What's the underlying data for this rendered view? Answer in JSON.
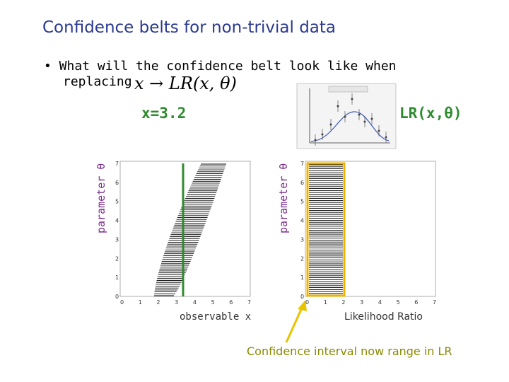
{
  "slide": {
    "title": "Confidence belts for non-trivial data",
    "bullet_line1": "• What will the confidence belt look like when",
    "bullet_line2": "replacing",
    "formula": "x → LR(x, θ)",
    "label_left": "x=3.2",
    "label_right": "LR(x,θ)",
    "ylabel_left": "parameter θ",
    "ylabel_right": "parameter θ",
    "xlabel_left": "observable x",
    "xlabel_right": "Likelihood Ratio",
    "annotation": "Confidence interval now range in LR"
  },
  "axes": {
    "x_ticks": [
      "0",
      "1",
      "2",
      "3",
      "4",
      "5",
      "6",
      "7"
    ],
    "y_ticks": [
      "0",
      "1",
      "2",
      "3",
      "4",
      "5",
      "6",
      "7"
    ]
  },
  "colors": {
    "title": "#2b3990",
    "green": "#2e8b2e",
    "yellow_box": "#f0b400",
    "arrow": "#e8c400"
  }
}
